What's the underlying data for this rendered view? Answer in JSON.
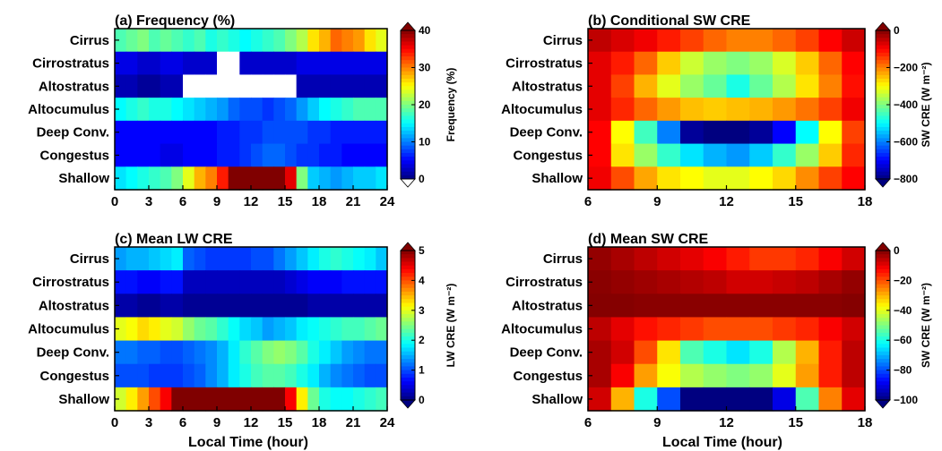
{
  "rows": [
    "Cirrus",
    "Cirrostratus",
    "Altostratus",
    "Altocumulus",
    "Deep Conv.",
    "Congestus",
    "Shallow"
  ],
  "x_axis_label": "Local Time (hour)",
  "chart_data": [
    {
      "type": "heatmap",
      "title": "(a) Frequency (%)",
      "x_ticks": [
        "0",
        "3",
        "6",
        "9",
        "12",
        "15",
        "18",
        "21",
        "24"
      ],
      "xlim": [
        0,
        24
      ],
      "x_bins": [
        0,
        1,
        2,
        3,
        4,
        5,
        6,
        7,
        8,
        9,
        10,
        11,
        12,
        13,
        14,
        15,
        16,
        17,
        18,
        19,
        20,
        21,
        22,
        23
      ],
      "colorbar": {
        "label": "Frequency (%)",
        "min": 0,
        "max": 40,
        "ticks": [
          "0",
          "10",
          "20",
          "30",
          "40"
        ]
      },
      "values": [
        [
          18,
          19,
          20,
          18,
          19,
          18,
          17,
          18,
          16,
          17,
          16,
          15,
          16,
          17,
          18,
          20,
          22,
          26,
          28,
          31,
          30,
          29,
          26,
          24
        ],
        [
          4,
          4,
          3,
          3,
          4,
          4,
          3,
          3,
          3,
          null,
          null,
          3,
          3,
          3,
          3,
          3,
          4,
          4,
          4,
          4,
          4,
          4,
          4,
          4
        ],
        [
          2,
          2,
          1,
          1,
          2,
          2,
          null,
          null,
          null,
          null,
          null,
          null,
          null,
          null,
          null,
          null,
          2,
          2,
          2,
          2,
          2,
          2,
          2,
          2
        ],
        [
          15,
          16,
          17,
          16,
          16,
          15,
          14,
          13,
          12,
          11,
          9,
          8,
          8,
          7,
          8,
          9,
          11,
          13,
          15,
          16,
          17,
          18,
          18,
          18
        ],
        [
          5,
          5,
          5,
          5,
          5,
          5,
          5,
          5,
          5,
          6,
          6,
          7,
          7,
          8,
          8,
          8,
          8,
          7,
          7,
          6,
          6,
          6,
          6,
          6
        ],
        [
          5,
          5,
          5,
          5,
          4,
          4,
          5,
          5,
          5,
          6,
          6,
          7,
          8,
          9,
          9,
          8,
          7,
          7,
          6,
          6,
          5,
          5,
          5,
          5
        ],
        [
          14,
          15,
          16,
          17,
          18,
          20,
          24,
          28,
          30,
          34,
          40,
          40,
          40,
          40,
          40,
          36,
          20,
          13,
          12,
          11,
          12,
          13,
          13,
          14
        ]
      ]
    },
    {
      "type": "heatmap",
      "title": "(b) Conditional SW CRE",
      "x_ticks": [
        "6",
        "9",
        "12",
        "15",
        "18"
      ],
      "xlim": [
        6,
        18
      ],
      "x_bins": [
        6,
        7,
        8,
        9,
        10,
        11,
        12,
        13,
        14,
        15,
        16,
        17
      ],
      "colorbar": {
        "label": "SW CRE (W m⁻²)",
        "min": -800,
        "max": 0,
        "ticks": [
          "0",
          "−200",
          "−400",
          "−600",
          "−800"
        ]
      },
      "values": [
        [
          -50,
          -70,
          -90,
          -120,
          -150,
          -180,
          -200,
          -200,
          -180,
          -150,
          -100,
          -60
        ],
        [
          -80,
          -120,
          -180,
          -260,
          -340,
          -380,
          -400,
          -380,
          -330,
          -260,
          -180,
          -100
        ],
        [
          -80,
          -150,
          -240,
          -320,
          -380,
          -420,
          -480,
          -420,
          -360,
          -280,
          -200,
          -110
        ],
        [
          -80,
          -130,
          -180,
          -220,
          -250,
          -260,
          -250,
          -240,
          -220,
          -190,
          -150,
          -90
        ],
        [
          -100,
          -300,
          -450,
          -600,
          -780,
          -800,
          -800,
          -780,
          -700,
          -500,
          -300,
          -150
        ],
        [
          -100,
          -280,
          -380,
          -460,
          -520,
          -560,
          -580,
          -540,
          -460,
          -380,
          -260,
          -130
        ],
        [
          -90,
          -160,
          -230,
          -280,
          -300,
          -320,
          -320,
          -300,
          -270,
          -210,
          -150,
          -100
        ]
      ]
    },
    {
      "type": "heatmap",
      "title": "(c) Mean LW CRE",
      "x_ticks": [
        "0",
        "3",
        "6",
        "9",
        "12",
        "15",
        "18",
        "21",
        "24"
      ],
      "xlim": [
        0,
        24
      ],
      "x_bins": [
        0,
        1,
        2,
        3,
        4,
        5,
        6,
        7,
        8,
        9,
        10,
        11,
        12,
        13,
        14,
        15,
        16,
        17,
        18,
        19,
        20,
        21,
        22,
        23
      ],
      "colorbar": {
        "label": "LW CRE (W m⁻²)",
        "min": 0,
        "max": 5,
        "ticks": [
          "0",
          "1",
          "2",
          "3",
          "4",
          "5"
        ]
      },
      "values": [
        [
          1.4,
          1.5,
          1.5,
          1.6,
          1.7,
          1.8,
          1.1,
          1.0,
          0.9,
          0.9,
          0.9,
          0.9,
          1.0,
          1.0,
          1.2,
          1.4,
          1.6,
          1.8,
          2.0,
          2.1,
          2.0,
          1.9,
          1.8,
          1.6
        ],
        [
          0.7,
          0.7,
          0.6,
          0.6,
          0.7,
          0.7,
          0.3,
          0.3,
          0.3,
          0.3,
          0.3,
          0.3,
          0.3,
          0.3,
          0.3,
          0.4,
          0.5,
          0.6,
          0.6,
          0.6,
          0.7,
          0.7,
          0.7,
          0.7
        ],
        [
          0.2,
          0.2,
          0.1,
          0.1,
          0.2,
          0.2,
          0.1,
          0.1,
          0.1,
          0.1,
          0.1,
          0.1,
          0.1,
          0.1,
          0.1,
          0.1,
          0.1,
          0.2,
          0.2,
          0.2,
          0.2,
          0.2,
          0.2,
          0.2
        ],
        [
          3.0,
          3.1,
          3.3,
          3.2,
          3.0,
          2.9,
          2.6,
          2.4,
          2.3,
          2.1,
          1.9,
          1.7,
          1.6,
          1.4,
          1.5,
          1.6,
          1.8,
          1.9,
          2.0,
          2.1,
          2.2,
          2.2,
          2.3,
          2.4
        ],
        [
          1.2,
          1.2,
          1.1,
          1.1,
          1.0,
          1.0,
          1.1,
          1.2,
          1.3,
          1.5,
          1.8,
          2.1,
          2.3,
          2.5,
          2.6,
          2.5,
          2.3,
          2.0,
          1.8,
          1.6,
          1.4,
          1.3,
          1.2,
          1.2
        ],
        [
          1.0,
          1.0,
          1.0,
          0.9,
          0.9,
          0.9,
          1.0,
          1.1,
          1.3,
          1.5,
          1.8,
          2.0,
          2.2,
          2.3,
          2.3,
          2.2,
          2.0,
          1.8,
          1.5,
          1.3,
          1.2,
          1.1,
          1.0,
          1.0
        ],
        [
          2.9,
          3.2,
          3.6,
          4.0,
          4.4,
          5.0,
          5.0,
          5.0,
          5.0,
          5.0,
          5.0,
          5.0,
          5.0,
          5.0,
          5.0,
          4.4,
          3.2,
          2.4,
          2.0,
          1.9,
          1.9,
          2.0,
          2.1,
          2.2
        ]
      ]
    },
    {
      "type": "heatmap",
      "title": "(d) Mean SW CRE",
      "x_ticks": [
        "6",
        "9",
        "12",
        "15",
        "18"
      ],
      "xlim": [
        6,
        18
      ],
      "x_bins": [
        6,
        7,
        8,
        9,
        10,
        11,
        12,
        13,
        14,
        15,
        16,
        17
      ],
      "colorbar": {
        "label": "SW CRE (W m⁻²)",
        "min": -100,
        "max": 0,
        "ticks": [
          "0",
          "−20",
          "−40",
          "−60",
          "−80",
          "−100"
        ]
      },
      "values": [
        [
          -2,
          -4,
          -6,
          -8,
          -10,
          -12,
          -15,
          -18,
          -18,
          -16,
          -12,
          -8
        ],
        [
          -1,
          -2,
          -3,
          -4,
          -5,
          -6,
          -8,
          -8,
          -7,
          -6,
          -4,
          -2
        ],
        [
          -0.5,
          -0.5,
          -1,
          -1,
          -1,
          -1,
          -1,
          -1,
          -1,
          -1,
          -1,
          -0.5
        ],
        [
          -6,
          -10,
          -14,
          -16,
          -18,
          -20,
          -20,
          -20,
          -18,
          -16,
          -12,
          -8
        ],
        [
          -4,
          -8,
          -20,
          -35,
          -55,
          -60,
          -65,
          -60,
          -45,
          -30,
          -15,
          -6
        ],
        [
          -4,
          -12,
          -28,
          -38,
          -45,
          -48,
          -50,
          -48,
          -40,
          -28,
          -15,
          -6
        ],
        [
          -8,
          -30,
          -60,
          -80,
          -100,
          -100,
          -100,
          -100,
          -90,
          -55,
          -25,
          -10
        ]
      ]
    }
  ]
}
